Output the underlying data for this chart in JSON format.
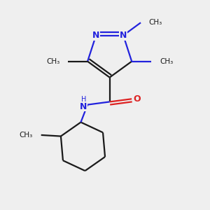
{
  "bg_color": "#efefef",
  "bond_color": "#1a1a1a",
  "N_color": "#2222dd",
  "O_color": "#dd2222",
  "NH_color": "#2222dd",
  "lw": 1.6,
  "off": 0.05,
  "figsize": [
    3.0,
    3.0
  ],
  "dpi": 100,
  "xlim": [
    -1.3,
    1.3
  ],
  "ylim": [
    -1.55,
    2.0
  ]
}
